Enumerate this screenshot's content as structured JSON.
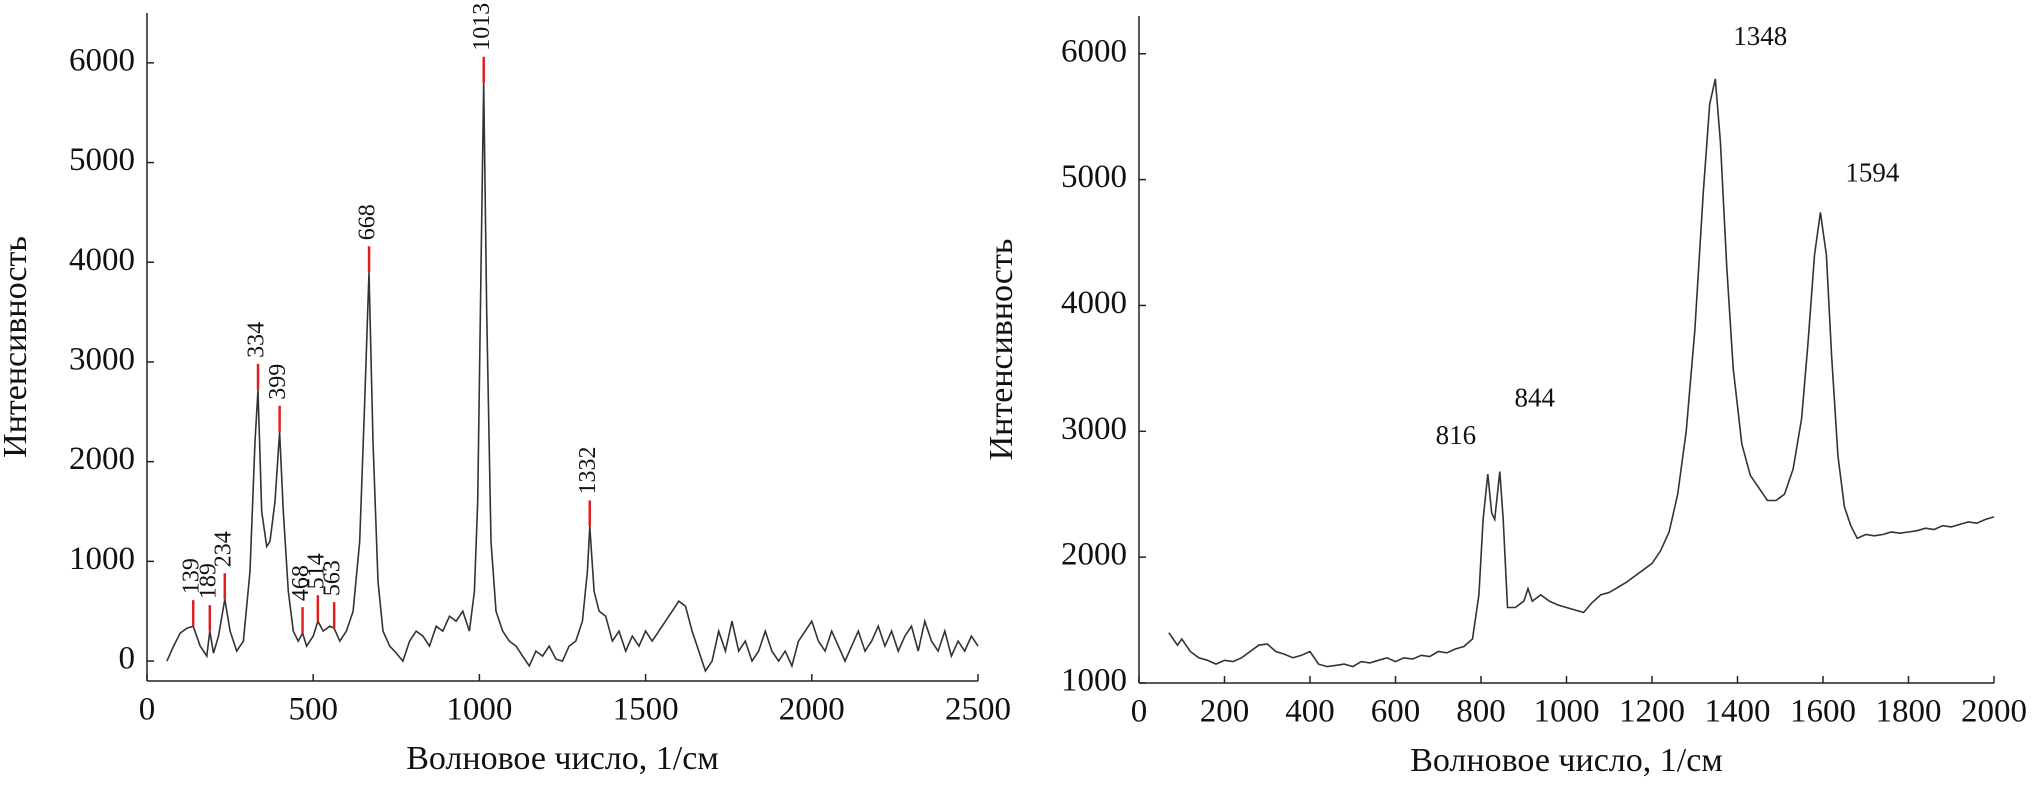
{
  "chart_data": [
    {
      "type": "line",
      "xlabel": "Волновое число, 1/см",
      "ylabel": "Интенсивность",
      "xlim": [
        0,
        2500
      ],
      "ylim": [
        -200,
        6500
      ],
      "xticks": [
        0,
        500,
        1000,
        1500,
        2000,
        2500
      ],
      "yticks": [
        0,
        1000,
        2000,
        3000,
        4000,
        5000,
        6000
      ],
      "series": [
        {
          "color": "#333333",
          "x": [
            60,
            80,
            100,
            120,
            139,
            160,
            180,
            189,
            200,
            215,
            234,
            250,
            270,
            290,
            310,
            325,
            334,
            345,
            360,
            370,
            385,
            399,
            410,
            425,
            440,
            455,
            468,
            480,
            500,
            514,
            530,
            550,
            563,
            580,
            600,
            620,
            640,
            655,
            668,
            680,
            695,
            710,
            730,
            750,
            770,
            790,
            810,
            830,
            850,
            870,
            890,
            910,
            930,
            950,
            970,
            985,
            995,
            1005,
            1013,
            1022,
            1035,
            1050,
            1070,
            1090,
            1110,
            1130,
            1150,
            1170,
            1190,
            1210,
            1230,
            1250,
            1270,
            1290,
            1310,
            1325,
            1332,
            1345,
            1360,
            1380,
            1400,
            1420,
            1440,
            1460,
            1480,
            1500,
            1520,
            1540,
            1560,
            1580,
            1600,
            1620,
            1640,
            1660,
            1680,
            1700,
            1720,
            1740,
            1760,
            1780,
            1800,
            1820,
            1840,
            1860,
            1880,
            1900,
            1920,
            1940,
            1960,
            1980,
            2000,
            2020,
            2040,
            2060,
            2080,
            2100,
            2120,
            2140,
            2160,
            2180,
            2200,
            2220,
            2240,
            2260,
            2280,
            2300,
            2320,
            2340,
            2360,
            2380,
            2400,
            2420,
            2440,
            2460,
            2480,
            2500
          ],
          "values": [
            0,
            150,
            280,
            330,
            350,
            150,
            50,
            300,
            80,
            250,
            620,
            300,
            100,
            200,
            900,
            2200,
            2720,
            1500,
            1150,
            1200,
            1600,
            2300,
            1500,
            700,
            300,
            200,
            280,
            150,
            250,
            400,
            300,
            350,
            330,
            200,
            300,
            500,
            1200,
            2600,
            3900,
            2200,
            800,
            300,
            150,
            80,
            0,
            200,
            300,
            250,
            150,
            350,
            300,
            450,
            400,
            500,
            300,
            700,
            1600,
            4000,
            5800,
            3500,
            1200,
            500,
            300,
            200,
            150,
            50,
            -50,
            100,
            50,
            150,
            20,
            0,
            150,
            200,
            400,
            900,
            1350,
            700,
            500,
            450,
            200,
            300,
            100,
            250,
            150,
            300,
            200,
            300,
            400,
            500,
            600,
            550,
            300,
            100,
            -100,
            0,
            300,
            100,
            400,
            100,
            200,
            0,
            100,
            300,
            100,
            0,
            100,
            -50,
            200,
            300,
            400,
            200,
            100,
            300,
            150,
            0,
            150,
            300,
            100,
            200,
            350,
            150,
            300,
            100,
            250,
            350,
            100,
            400,
            200,
            100,
            300,
            50,
            200,
            100,
            250,
            150
          ]
        }
      ],
      "peaks": {
        "color": "#e02020",
        "x": [
          139,
          189,
          234,
          334,
          399,
          468,
          514,
          563,
          668,
          1013,
          1332
        ],
        "y": [
          350,
          300,
          620,
          2720,
          2300,
          280,
          400,
          330,
          3900,
          5800,
          1350
        ]
      }
    },
    {
      "type": "line",
      "xlabel": "Волновое число, 1/см",
      "ylabel": "Интенсивность",
      "xlim": [
        0,
        2000
      ],
      "ylim": [
        1000,
        6300
      ],
      "xticks": [
        0,
        200,
        400,
        600,
        800,
        1000,
        1200,
        1400,
        1600,
        1800,
        2000
      ],
      "yticks": [
        1000,
        2000,
        3000,
        4000,
        5000,
        6000
      ],
      "series": [
        {
          "color": "#333333",
          "x": [
            70,
            80,
            90,
            100,
            120,
            140,
            160,
            180,
            200,
            220,
            240,
            260,
            280,
            300,
            320,
            340,
            360,
            380,
            400,
            420,
            440,
            460,
            480,
            500,
            520,
            540,
            560,
            580,
            600,
            620,
            640,
            660,
            680,
            700,
            720,
            740,
            760,
            780,
            795,
            805,
            816,
            825,
            832,
            844,
            852,
            862,
            880,
            900,
            910,
            920,
            940,
            960,
            980,
            1000,
            1020,
            1040,
            1060,
            1080,
            1100,
            1120,
            1140,
            1160,
            1180,
            1200,
            1220,
            1240,
            1260,
            1280,
            1300,
            1320,
            1335,
            1348,
            1360,
            1375,
            1390,
            1410,
            1430,
            1450,
            1470,
            1490,
            1510,
            1530,
            1550,
            1565,
            1580,
            1594,
            1608,
            1620,
            1635,
            1650,
            1665,
            1680,
            1700,
            1720,
            1740,
            1760,
            1780,
            1800,
            1820,
            1840,
            1860,
            1880,
            1900,
            1920,
            1940,
            1960,
            1980,
            2000
          ],
          "values": [
            1400,
            1350,
            1300,
            1350,
            1250,
            1200,
            1180,
            1150,
            1180,
            1170,
            1200,
            1250,
            1300,
            1310,
            1250,
            1230,
            1200,
            1220,
            1250,
            1150,
            1130,
            1140,
            1150,
            1130,
            1170,
            1160,
            1180,
            1200,
            1170,
            1200,
            1190,
            1220,
            1210,
            1250,
            1240,
            1270,
            1290,
            1350,
            1700,
            2300,
            2660,
            2350,
            2300,
            2680,
            2300,
            1600,
            1600,
            1650,
            1750,
            1650,
            1700,
            1650,
            1620,
            1600,
            1580,
            1560,
            1640,
            1700,
            1720,
            1760,
            1800,
            1850,
            1900,
            1950,
            2050,
            2200,
            2500,
            3000,
            3800,
            4900,
            5600,
            5800,
            5300,
            4300,
            3500,
            2900,
            2650,
            2550,
            2450,
            2450,
            2500,
            2700,
            3100,
            3700,
            4400,
            4740,
            4400,
            3600,
            2800,
            2400,
            2250,
            2150,
            2180,
            2170,
            2180,
            2200,
            2190,
            2200,
            2210,
            2230,
            2220,
            2250,
            2240,
            2260,
            2280,
            2270,
            2300,
            2320
          ]
        }
      ],
      "peaks": {
        "x": [
          816,
          844,
          1348,
          1594
        ],
        "y": [
          2660,
          2680,
          5800,
          4740
        ]
      }
    }
  ]
}
